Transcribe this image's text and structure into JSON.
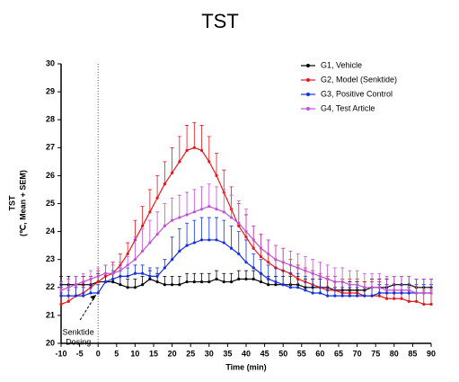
{
  "chart_data": {
    "type": "line",
    "title": "TST",
    "y_label": [
      "TST",
      "(℃, Mean + SEM)"
    ],
    "x_label": "Time (min)",
    "annotation": {
      "text": [
        "Senktide",
        "Dosing"
      ],
      "x": 0,
      "y": 21.8
    },
    "legend": "upper right",
    "xlim": [
      -10,
      90
    ],
    "xticks": [
      -10,
      -5,
      0,
      5,
      10,
      15,
      20,
      25,
      30,
      35,
      40,
      45,
      50,
      55,
      60,
      65,
      70,
      75,
      80,
      85,
      90
    ],
    "ylim": [
      20,
      30
    ],
    "yticks": [
      20,
      21,
      22,
      23,
      24,
      25,
      26,
      27,
      28,
      29,
      30
    ],
    "x": [
      -10,
      -8,
      -6,
      -4,
      -2,
      0,
      2,
      4,
      6,
      8,
      10,
      12,
      14,
      16,
      18,
      20,
      22,
      24,
      26,
      28,
      30,
      32,
      34,
      36,
      38,
      40,
      42,
      44,
      46,
      48,
      50,
      52,
      54,
      56,
      58,
      60,
      62,
      64,
      66,
      68,
      70,
      72,
      74,
      76,
      78,
      80,
      82,
      84,
      86,
      88,
      90
    ],
    "series": [
      {
        "name": "G1, Vehicle",
        "color": "#000000",
        "values": [
          22.1,
          22.1,
          22.1,
          22.1,
          22.1,
          22.2,
          22.2,
          22.2,
          22.1,
          22.0,
          22.0,
          22.1,
          22.3,
          22.2,
          22.1,
          22.1,
          22.1,
          22.2,
          22.2,
          22.2,
          22.2,
          22.3,
          22.2,
          22.2,
          22.3,
          22.3,
          22.3,
          22.2,
          22.1,
          22.1,
          22.1,
          22.1,
          22.1,
          22.0,
          22.0,
          22.0,
          22.0,
          21.9,
          21.9,
          21.9,
          21.9,
          21.9,
          22.0,
          22.0,
          22.0,
          22.1,
          22.1,
          22.1,
          22.0,
          22.0,
          22.0
        ],
        "errors": [
          0.3,
          0.3,
          0.3,
          0.3,
          0.3,
          0.3,
          0.3,
          0.3,
          0.3,
          0.3,
          0.3,
          0.3,
          0.3,
          0.3,
          0.3,
          0.3,
          0.3,
          0.3,
          0.3,
          0.3,
          0.3,
          0.3,
          0.3,
          0.3,
          0.3,
          0.3,
          0.3,
          0.3,
          0.3,
          0.3,
          0.3,
          0.3,
          0.3,
          0.3,
          0.3,
          0.3,
          0.3,
          0.3,
          0.3,
          0.3,
          0.3,
          0.3,
          0.3,
          0.3,
          0.3,
          0.3,
          0.3,
          0.3,
          0.3,
          0.3,
          0.3
        ]
      },
      {
        "name": "G2, Model (Senktide)",
        "color": "#e8161b",
        "values": [
          21.4,
          21.5,
          21.7,
          21.8,
          22.0,
          22.2,
          22.4,
          22.5,
          22.8,
          23.2,
          23.7,
          24.2,
          24.7,
          25.2,
          25.7,
          26.1,
          26.5,
          26.9,
          27.0,
          26.9,
          26.5,
          26.0,
          25.4,
          24.8,
          24.2,
          23.8,
          23.4,
          23.1,
          22.9,
          22.7,
          22.6,
          22.5,
          22.3,
          22.2,
          22.1,
          22.0,
          21.9,
          21.9,
          21.8,
          21.8,
          21.8,
          21.7,
          21.7,
          21.7,
          21.6,
          21.6,
          21.6,
          21.5,
          21.5,
          21.4,
          21.4
        ],
        "errors": [
          0.4,
          0.4,
          0.4,
          0.4,
          0.4,
          0.4,
          0.4,
          0.4,
          0.4,
          0.4,
          0.7,
          0.7,
          0.8,
          0.8,
          0.8,
          0.9,
          0.9,
          0.9,
          0.9,
          0.9,
          0.9,
          0.8,
          0.8,
          0.8,
          0.8,
          0.8,
          0.8,
          0.8,
          0.8,
          0.8,
          0.8,
          0.5,
          0.5,
          0.5,
          0.5,
          0.5,
          0.5,
          0.5,
          0.5,
          0.5,
          0.5,
          0.5,
          0.5,
          0.5,
          0.5,
          0.5,
          0.5,
          0.5,
          0.5,
          0.5,
          0.5
        ]
      },
      {
        "name": "G3, Positive Control",
        "color": "#1530e0",
        "values": [
          21.7,
          21.7,
          21.7,
          21.7,
          21.8,
          21.8,
          22.2,
          22.3,
          22.4,
          22.4,
          22.5,
          22.5,
          22.4,
          22.4,
          22.7,
          23.0,
          23.3,
          23.5,
          23.6,
          23.7,
          23.7,
          23.7,
          23.6,
          23.4,
          23.2,
          22.9,
          22.7,
          22.5,
          22.3,
          22.2,
          22.1,
          22.0,
          22.0,
          21.9,
          21.8,
          21.8,
          21.7,
          21.7,
          21.7,
          21.7,
          21.7,
          21.7,
          21.7,
          21.8,
          21.8,
          21.8,
          21.8,
          21.8,
          21.8,
          21.8,
          21.8
        ],
        "errors": [
          0.3,
          0.3,
          0.3,
          0.3,
          0.3,
          0.3,
          0.3,
          0.3,
          0.3,
          0.3,
          0.3,
          0.3,
          0.3,
          0.3,
          0.3,
          0.8,
          0.8,
          0.8,
          0.8,
          0.8,
          0.8,
          0.8,
          0.8,
          0.8,
          0.8,
          0.8,
          0.5,
          0.5,
          0.5,
          0.5,
          0.5,
          0.5,
          0.5,
          0.5,
          0.5,
          0.5,
          0.3,
          0.3,
          0.3,
          0.3,
          0.3,
          0.3,
          0.3,
          0.3,
          0.3,
          0.3,
          0.3,
          0.3,
          0.3,
          0.3,
          0.3
        ]
      },
      {
        "name": "G4, Test Article",
        "color": "#c050d8",
        "values": [
          21.9,
          22.0,
          22.1,
          22.2,
          22.3,
          22.4,
          22.5,
          22.5,
          22.6,
          22.8,
          23.0,
          23.3,
          23.6,
          23.9,
          24.2,
          24.4,
          24.5,
          24.6,
          24.7,
          24.8,
          24.9,
          24.8,
          24.7,
          24.5,
          24.3,
          24.0,
          23.7,
          23.4,
          23.2,
          23.0,
          22.9,
          22.8,
          22.7,
          22.6,
          22.5,
          22.4,
          22.3,
          22.2,
          22.2,
          22.1,
          22.1,
          22.0,
          22.0,
          22.0,
          21.9,
          21.9,
          21.9,
          21.9,
          21.8,
          21.8,
          21.8
        ],
        "errors": [
          0.3,
          0.3,
          0.3,
          0.3,
          0.3,
          0.3,
          0.3,
          0.3,
          0.3,
          0.3,
          0.8,
          0.8,
          0.8,
          0.8,
          0.8,
          0.8,
          0.8,
          0.8,
          0.8,
          0.8,
          0.8,
          0.8,
          0.8,
          0.8,
          0.8,
          0.8,
          0.5,
          0.5,
          0.5,
          0.5,
          0.5,
          0.5,
          0.5,
          0.5,
          0.5,
          0.5,
          0.5,
          0.5,
          0.5,
          0.5,
          0.5,
          0.5,
          0.5,
          0.5,
          0.5,
          0.5,
          0.5,
          0.5,
          0.5,
          0.5,
          0.5
        ]
      }
    ]
  }
}
